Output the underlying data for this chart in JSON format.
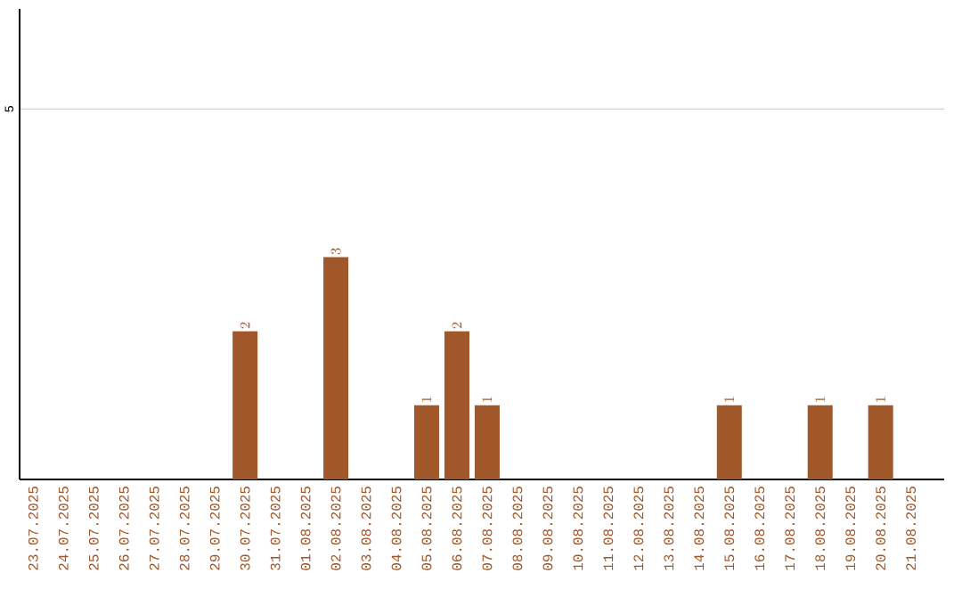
{
  "chart_data": {
    "type": "bar",
    "categories": [
      "23.07.2025",
      "24.07.2025",
      "25.07.2025",
      "26.07.2025",
      "27.07.2025",
      "28.07.2025",
      "29.07.2025",
      "30.07.2025",
      "31.07.2025",
      "01.08.2025",
      "02.08.2025",
      "03.08.2025",
      "04.08.2025",
      "05.08.2025",
      "06.08.2025",
      "07.08.2025",
      "08.08.2025",
      "09.08.2025",
      "10.08.2025",
      "11.08.2025",
      "12.08.2025",
      "13.08.2025",
      "14.08.2025",
      "15.08.2025",
      "16.08.2025",
      "17.08.2025",
      "18.08.2025",
      "19.08.2025",
      "20.08.2025",
      "21.08.2025"
    ],
    "values": [
      null,
      null,
      null,
      null,
      null,
      null,
      null,
      2,
      null,
      null,
      3,
      null,
      null,
      1,
      2,
      1,
      null,
      null,
      null,
      null,
      null,
      null,
      null,
      1,
      null,
      null,
      1,
      null,
      1,
      null
    ],
    "color": "#a0572a",
    "ylim": [
      0,
      6.35
    ],
    "yticks": [
      5
    ],
    "grid": "y",
    "data_labels": true
  }
}
